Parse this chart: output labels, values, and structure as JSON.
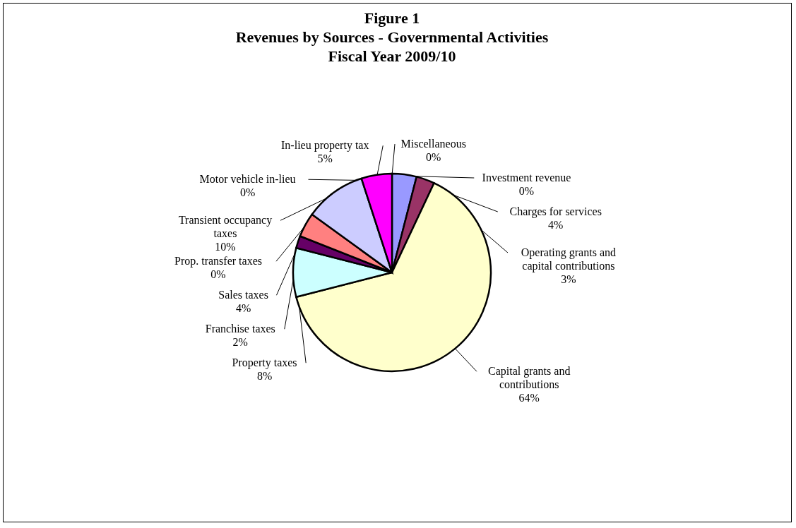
{
  "chart_data": {
    "type": "pie",
    "title": "Figure 1\nRevenues by Sources - Governmental Activities\nFiscal Year 2009/10",
    "categories": [
      "Charges for services",
      "Operating grants and capital contributions",
      "Capital grants and contributions",
      "Property taxes",
      "Franchise taxes",
      "Sales taxes",
      "Prop. transfer taxes",
      "Transient occupancy taxes",
      "Motor vehicle in-lieu",
      "In-lieu property tax",
      "Miscellaneous",
      "Investment revenue"
    ],
    "values": [
      4,
      3,
      64,
      8,
      2,
      4,
      0,
      10,
      0,
      5,
      0,
      0
    ],
    "value_labels": [
      "4%",
      "3%",
      "64%",
      "8%",
      "2%",
      "4%",
      "0%",
      "10%",
      "0%",
      "5%",
      "0%",
      "0%"
    ],
    "colors": [
      "#9999ff",
      "#993366",
      "#ffffcc",
      "#ccffff",
      "#660066",
      "#ff8080",
      "#0066cc",
      "#ccccff",
      "#000080",
      "#ff00ff",
      "#008080",
      "#00ffff"
    ]
  }
}
